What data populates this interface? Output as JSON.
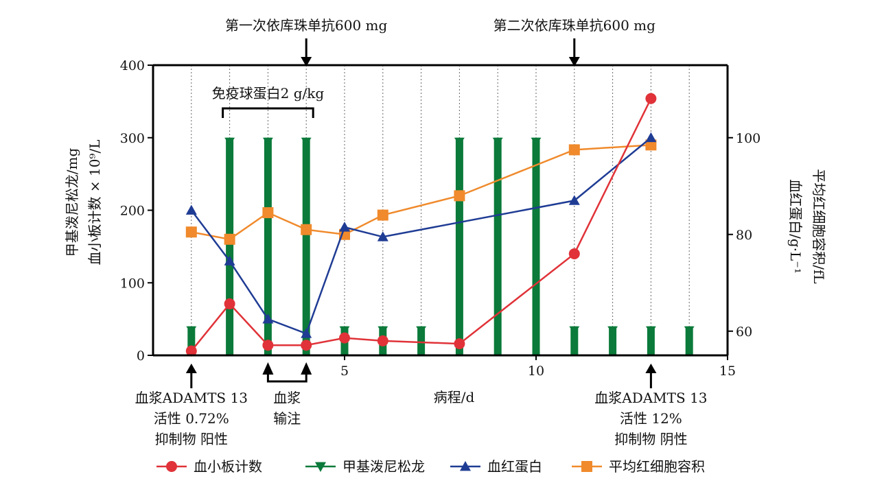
{
  "chart_data": {
    "type": "line",
    "xlabel": "病程/d",
    "x_ticks": [
      5,
      10,
      15
    ],
    "xlim": [
      0,
      15
    ],
    "y_left": {
      "label_lines": [
        "甲基泼尼松龙/mg",
        "血小板计数 × 10⁹/L"
      ],
      "ticks": [
        0,
        100,
        200,
        300,
        400
      ],
      "lim": [
        0,
        400
      ]
    },
    "y_right": {
      "label_lines": [
        "平均红细胞容积/fL",
        "血红蛋白/g·L⁻¹"
      ],
      "ticks": [
        60,
        80,
        100
      ],
      "lim": [
        55,
        115
      ]
    },
    "grid": "vertical dotted at each day",
    "series": [
      {
        "name": "甲基泼尼松龙",
        "axis": "left",
        "kind": "bar",
        "color": "#0b7a3a",
        "x": [
          1,
          2,
          3,
          4,
          5,
          6,
          7,
          8,
          9,
          10,
          11,
          12,
          13,
          14
        ],
        "values": [
          40,
          300,
          300,
          300,
          40,
          40,
          40,
          300,
          300,
          300,
          40,
          40,
          40,
          40
        ]
      },
      {
        "name": "血小板计数",
        "axis": "left",
        "kind": "line",
        "marker": "circle",
        "color": "#e03238",
        "x": [
          1,
          2,
          3,
          4,
          5,
          6,
          8,
          11,
          13
        ],
        "values": [
          6,
          71,
          14,
          14,
          24,
          20,
          16,
          140,
          354
        ]
      },
      {
        "name": "血红蛋白",
        "axis": "right",
        "kind": "line",
        "marker": "triangle",
        "color": "#1f3c94",
        "x": [
          1,
          2,
          3,
          4,
          5,
          6,
          11,
          13
        ],
        "values": [
          85,
          74.5,
          62.5,
          59.5,
          81.5,
          79.5,
          87,
          100
        ]
      },
      {
        "name": "平均红细胞容积",
        "axis": "right",
        "kind": "line",
        "marker": "square",
        "color": "#f08a2c",
        "x": [
          1,
          2,
          3,
          4,
          5,
          6,
          8,
          11,
          13
        ],
        "values": [
          80.5,
          79,
          84.5,
          81,
          80,
          84,
          88,
          97.5,
          98.5
        ]
      }
    ],
    "top_annotations": [
      {
        "text": "第一次依库珠单抗600 mg",
        "x": 4
      },
      {
        "text": "第二次依库珠单抗600 mg",
        "x": 11
      }
    ],
    "ivig": {
      "text": "免疫球蛋白2 g/kg",
      "x_start": 2,
      "x_end": 4
    },
    "bottom_annotations": [
      {
        "lines": [
          "血浆ADAMTS 13",
          "活性  0.72%",
          "抑制物  阳性"
        ],
        "x": 1
      },
      {
        "lines": [
          "血浆",
          "输注"
        ],
        "x_start": 3,
        "x_end": 4
      },
      {
        "lines": [
          "血浆ADAMTS 13",
          "活性  12%",
          "抑制物  阴性"
        ],
        "x": 13
      }
    ],
    "legend": {
      "placement": "bottom",
      "items": [
        {
          "label": "血小板计数",
          "marker": "circle",
          "color": "#e03238"
        },
        {
          "label": "甲基泼尼松龙",
          "marker": "down-triangle",
          "color": "#0b7a3a"
        },
        {
          "label": "血红蛋白",
          "marker": "triangle",
          "color": "#1f3c94"
        },
        {
          "label": "平均红细胞容积",
          "marker": "square",
          "color": "#f08a2c"
        }
      ]
    }
  }
}
